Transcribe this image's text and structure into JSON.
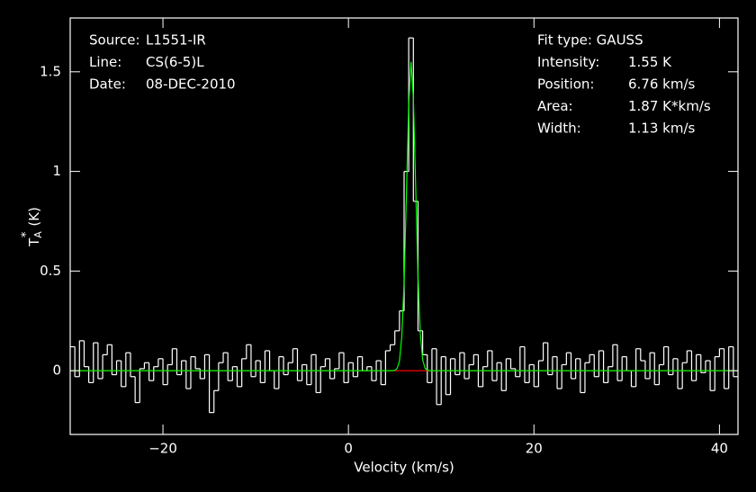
{
  "chart_data": {
    "type": "spectrum",
    "xlabel": "Velocity (km/s)",
    "ylabel": {
      "symbol": "T",
      "subscript": "A",
      "superscript": "*",
      "unit": "(K)"
    },
    "info_left": [
      [
        "Source:",
        "L1551-IR"
      ],
      [
        "Line:",
        "CS(6-5)L"
      ],
      [
        "Date:",
        "08-DEC-2010"
      ]
    ],
    "fit_title": "Fit type: GAUSS",
    "info_right": [
      [
        "Intensity:",
        "1.55 K"
      ],
      [
        "Position:",
        "6.76 km/s"
      ],
      [
        "Area:",
        "1.87 K*km/s"
      ],
      [
        "Width:",
        "1.13 km/s"
      ]
    ],
    "xlim": [
      -30,
      42
    ],
    "ylim": [
      -0.32,
      1.77
    ],
    "xticks": [
      {
        "value": -20,
        "label": "−20"
      },
      0,
      20,
      40
    ],
    "yticks": [
      0,
      0.5,
      1,
      1.5
    ],
    "series": [
      {
        "color": "#ffffff",
        "step": true,
        "x": [
          -29.75,
          -29.25,
          -28.75,
          -28.25,
          -27.75,
          -27.25,
          -26.75,
          -26.25,
          -25.75,
          -25.25,
          -24.75,
          -24.25,
          -23.75,
          -23.25,
          -22.75,
          -22.25,
          -21.75,
          -21.25,
          -20.75,
          -20.25,
          -19.75,
          -19.25,
          -18.75,
          -18.25,
          -17.75,
          -17.25,
          -16.75,
          -16.25,
          -15.75,
          -15.25,
          -14.75,
          -14.25,
          -13.75,
          -13.25,
          -12.75,
          -12.25,
          -11.75,
          -11.25,
          -10.75,
          -10.25,
          -9.75,
          -9.25,
          -8.75,
          -8.25,
          -7.75,
          -7.25,
          -6.75,
          -6.25,
          -5.75,
          -5.25,
          -4.75,
          -4.25,
          -3.75,
          -3.25,
          -2.75,
          -2.25,
          -1.75,
          -1.25,
          -0.75,
          -0.25,
          0.25,
          0.75,
          1.25,
          1.75,
          2.25,
          2.75,
          3.25,
          3.75,
          4.25,
          4.75,
          5.25,
          5.75,
          6.25,
          6.75,
          7.25,
          7.75,
          8.25,
          8.75,
          9.25,
          9.75,
          10.25,
          10.75,
          11.25,
          11.75,
          12.25,
          12.75,
          13.25,
          13.75,
          14.25,
          14.75,
          15.25,
          15.75,
          16.25,
          16.75,
          17.25,
          17.75,
          18.25,
          18.75,
          19.25,
          19.75,
          20.25,
          20.75,
          21.25,
          21.75,
          22.25,
          22.75,
          23.25,
          23.75,
          24.25,
          24.75,
          25.25,
          25.75,
          26.25,
          26.75,
          27.25,
          27.75,
          28.25,
          28.75,
          29.25,
          29.75,
          30.25,
          30.75,
          31.25,
          31.75,
          32.25,
          32.75,
          33.25,
          33.75,
          34.25,
          34.75,
          35.25,
          35.75,
          36.25,
          36.75,
          37.25,
          37.75,
          38.25,
          38.75,
          39.25,
          39.75,
          40.25,
          40.75,
          41.25,
          41.75
        ],
        "values": [
          0.12,
          -0.03,
          0.15,
          0.02,
          -0.06,
          0.14,
          -0.04,
          0.08,
          0.13,
          -0.02,
          0.05,
          -0.08,
          0.09,
          -0.03,
          -0.16,
          0.01,
          0.04,
          -0.05,
          0.02,
          0.06,
          -0.07,
          0.03,
          0.11,
          -0.02,
          0.05,
          -0.09,
          0.07,
          0.01,
          -0.04,
          0.08,
          -0.21,
          -0.1,
          0.04,
          0.09,
          -0.05,
          0.02,
          -0.08,
          0.06,
          0.13,
          -0.03,
          0.05,
          -0.06,
          0.1,
          0.0,
          -0.09,
          0.07,
          -0.02,
          0.04,
          0.11,
          -0.05,
          0.03,
          -0.07,
          0.08,
          -0.11,
          0.02,
          0.06,
          -0.04,
          0.01,
          0.09,
          -0.06,
          0.04,
          -0.03,
          0.07,
          0.0,
          0.02,
          -0.05,
          0.05,
          -0.07,
          0.1,
          0.13,
          0.2,
          0.3,
          1.0,
          1.67,
          0.85,
          0.2,
          0.08,
          -0.06,
          0.11,
          -0.17,
          0.07,
          -0.12,
          0.06,
          -0.02,
          0.09,
          -0.04,
          0.03,
          0.08,
          -0.08,
          0.02,
          0.1,
          -0.05,
          0.04,
          -0.1,
          0.06,
          0.01,
          -0.03,
          0.12,
          -0.06,
          0.03,
          -0.08,
          0.05,
          0.14,
          -0.02,
          0.07,
          -0.09,
          0.03,
          0.09,
          -0.04,
          0.06,
          -0.11,
          0.04,
          0.08,
          -0.03,
          0.1,
          -0.06,
          0.02,
          0.13,
          -0.05,
          0.07,
          0.0,
          -0.08,
          0.11,
          0.05,
          -0.04,
          0.09,
          -0.07,
          0.03,
          0.12,
          -0.02,
          0.06,
          -0.09,
          0.04,
          0.1,
          -0.05,
          0.08,
          -0.01,
          0.05,
          -0.1,
          0.07,
          0.11,
          -0.09,
          0.12,
          -0.03
        ]
      },
      {
        "color": "#ff0000",
        "x": [
          -30,
          42
        ],
        "values": [
          0,
          0
        ]
      },
      {
        "color": "#00ff00",
        "x": [
          -30,
          4,
          4.25,
          4.5,
          4.75,
          5,
          5.25,
          5.5,
          5.75,
          6,
          6.25,
          6.5,
          6.75,
          7,
          7.25,
          7.5,
          7.75,
          8,
          8.25,
          8.5,
          8.75,
          9,
          9.25,
          9.5,
          42
        ],
        "values": [
          0,
          0,
          0,
          0,
          0,
          0.002,
          0.011,
          0.049,
          0.17,
          0.443,
          0.882,
          1.339,
          1.55,
          1.368,
          0.921,
          0.473,
          0.185,
          0.055,
          0.013,
          0.002,
          0,
          0,
          0,
          0,
          0
        ]
      }
    ]
  }
}
